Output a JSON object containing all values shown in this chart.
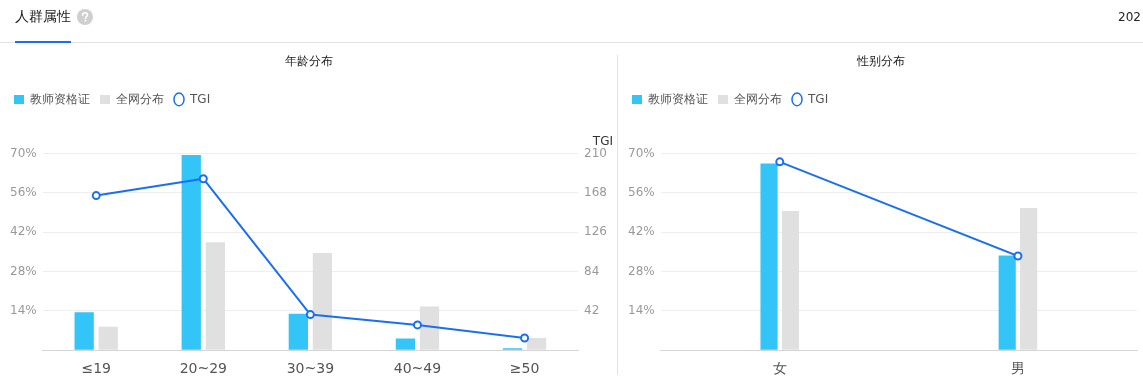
{
  "chart_data": [
    {
      "type": "bar",
      "title": "年龄分布",
      "annotations": [
        "人群属性",
        "202"
      ],
      "categories": [
        "≤19",
        "20~29",
        "30~39",
        "40~49",
        "≥50"
      ],
      "series": [
        {
          "name": "教师资格证",
          "color": "#33c5f7",
          "values": [
            13.5,
            69.4,
            13,
            4.2,
            0.7
          ]
        },
        {
          "name": "全网分布",
          "color": "#e0e0e0",
          "values": [
            8.3,
            38.4,
            34.6,
            15.5,
            4.3
          ]
        },
        {
          "name": "TGI",
          "type": "line",
          "axis": "y2",
          "color": "#1a6ff0",
          "values": [
            165,
            183,
            38,
            27,
            13
          ]
        }
      ],
      "ylim": [
        0,
        70
      ],
      "yticks": [
        {
          "value": 0,
          "label": null
        },
        {
          "value": 14,
          "label": "14%"
        },
        {
          "value": 28,
          "label": "28%"
        },
        {
          "value": 42,
          "label": "42%"
        },
        {
          "value": 56,
          "label": "56%"
        },
        {
          "value": 70,
          "label": "70%"
        }
      ],
      "y2lim": [
        0,
        210
      ],
      "y2ticks": [
        42,
        84,
        126,
        168,
        210
      ],
      "y2label": "TGI",
      "grid": "y",
      "legend": "top left",
      "marker": "circle"
    },
    {
      "type": "bar",
      "title": "性别分布",
      "categories": [
        "女",
        "男"
      ],
      "series": [
        {
          "name": "教师资格证",
          "color": "#33c5f7",
          "values": [
            66.4,
            33.7
          ]
        },
        {
          "name": "全网分布",
          "color": "#e0e0e0",
          "values": [
            49.5,
            50.6
          ]
        },
        {
          "name": "TGI",
          "type": "line",
          "color": "#1a6ff0",
          "values": [
            67,
            33.5
          ]
        }
      ],
      "ylim": [
        0,
        70
      ],
      "yticks": [
        {
          "value": 0,
          "label": null
        },
        {
          "value": 14,
          "label": "14%"
        },
        {
          "value": 28,
          "label": "28%"
        },
        {
          "value": 42,
          "label": "42%"
        },
        {
          "value": 56,
          "label": "56%"
        },
        {
          "value": 70,
          "label": "70%"
        }
      ],
      "grid": "y",
      "legend": "top left",
      "marker": "circle"
    }
  ]
}
